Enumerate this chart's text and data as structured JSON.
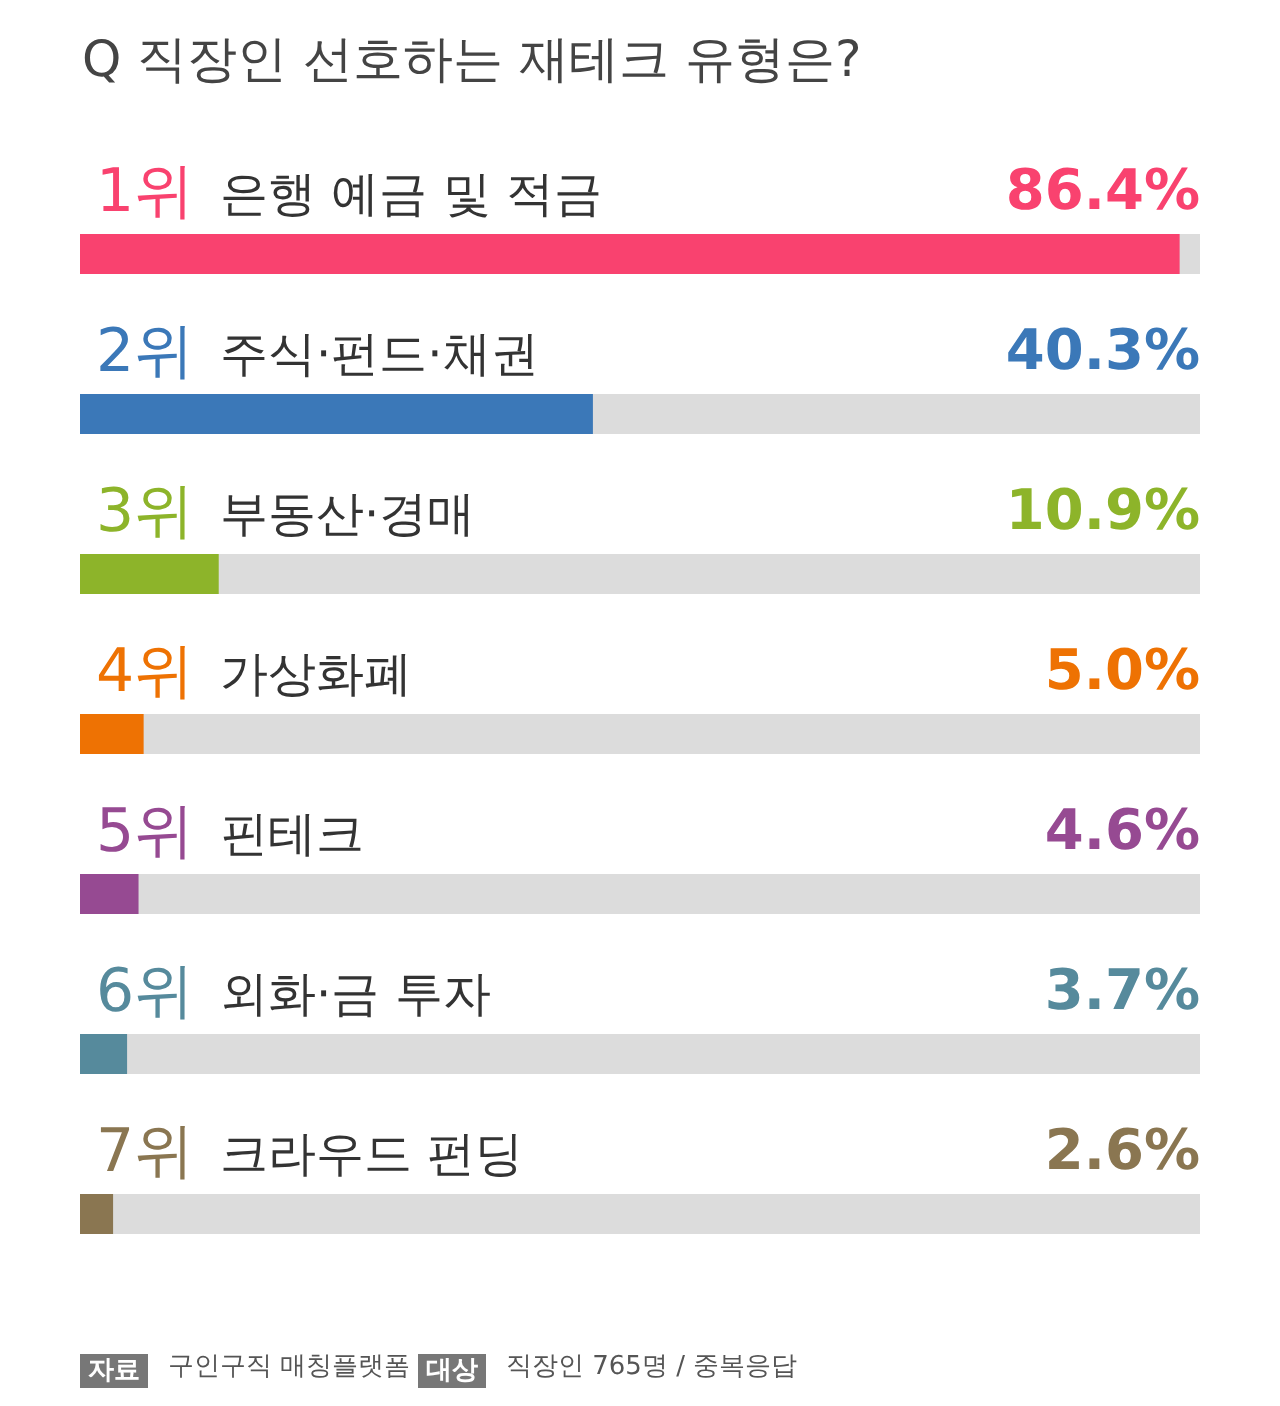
{
  "chart_data": {
    "type": "bar",
    "orientation": "horizontal",
    "title": "Q 직장인 선호하는 재테크 유형은?",
    "categories": [
      "은행 예금 및 적금",
      "주식·펀드·채권",
      "부동산·경매",
      "가상화폐",
      "핀테크",
      "외화·금 투자",
      "크라우드 펀딩"
    ],
    "values": [
      86.4,
      40.3,
      10.9,
      5.0,
      4.6,
      3.7,
      2.6
    ],
    "colors": [
      "#f9426f",
      "#3b78b8",
      "#8db42a",
      "#ee7203",
      "#964a92",
      "#568a9c",
      "#8a7651"
    ],
    "value_labels": [
      "86.4%",
      "40.3%",
      "10.9%",
      "5.0%",
      "4.6%",
      "3.7%",
      "2.6%"
    ],
    "xlim": [
      0,
      88
    ],
    "annotations": [
      "1위",
      "2위",
      "3위",
      "4위",
      "5위",
      "6위",
      "7위",
      "자료",
      "구인구직 매칭플랫폼",
      "대상",
      "직장인 765명 / 중복응답"
    ]
  }
}
